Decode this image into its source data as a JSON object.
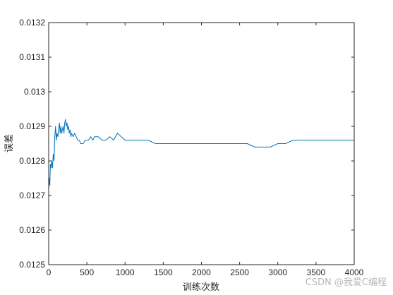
{
  "chart_data": {
    "type": "line",
    "title": "",
    "xlabel": "训练次数",
    "ylabel": "误差",
    "xlim": [
      0,
      4000
    ],
    "ylim": [
      0.0125,
      0.0132
    ],
    "xticks": [
      0,
      500,
      1000,
      1500,
      2000,
      2500,
      3000,
      3500,
      4000
    ],
    "xtick_labels": [
      "0",
      "500",
      "1000",
      "1500",
      "2000",
      "2500",
      "3000",
      "3500",
      "4000"
    ],
    "yticks": [
      0.0125,
      0.0126,
      0.0127,
      0.0128,
      0.0129,
      0.013,
      0.0131,
      0.0132
    ],
    "ytick_labels": [
      "0.0125",
      "0.0126",
      "0.0127",
      "0.0128",
      "0.0129",
      "0.013",
      "0.0131",
      "0.0132"
    ],
    "grid": false,
    "line_color": "#0072BD",
    "series": [
      {
        "x": [
          1,
          8,
          15,
          22,
          30,
          40,
          50,
          60,
          70,
          80,
          90,
          100,
          110,
          120,
          130,
          140,
          150,
          160,
          170,
          180,
          190,
          200,
          210,
          220,
          230,
          240,
          250,
          260,
          270,
          280,
          290,
          300,
          320,
          340,
          360,
          380,
          400,
          420,
          450,
          480,
          500,
          520,
          550,
          580,
          600,
          650,
          700,
          750,
          800,
          850,
          900,
          950,
          1000,
          1050,
          1100,
          1150,
          1200,
          1300,
          1400,
          1500,
          1600,
          1700,
          1800,
          1900,
          2000,
          2100,
          2200,
          2300,
          2400,
          2500,
          2600,
          2700,
          2800,
          2850,
          2900,
          3000,
          3050,
          3100,
          3200,
          3300,
          3400,
          3500,
          3600,
          3700,
          3800,
          3900,
          4000
        ],
        "y": [
          0.01272,
          0.01275,
          0.01273,
          0.01279,
          0.01278,
          0.0128,
          0.01278,
          0.01282,
          0.0128,
          0.01287,
          0.0129,
          0.01286,
          0.01288,
          0.01287,
          0.01289,
          0.01291,
          0.01288,
          0.0129,
          0.01288,
          0.01289,
          0.0129,
          0.01288,
          0.01291,
          0.01292,
          0.0129,
          0.01291,
          0.01289,
          0.0129,
          0.01288,
          0.01289,
          0.01287,
          0.01288,
          0.01287,
          0.01288,
          0.01287,
          0.01286,
          0.01286,
          0.01285,
          0.01285,
          0.01286,
          0.01286,
          0.01286,
          0.01287,
          0.01286,
          0.01287,
          0.01287,
          0.01286,
          0.01286,
          0.01287,
          0.01286,
          0.01288,
          0.01287,
          0.01286,
          0.01286,
          0.01286,
          0.01286,
          0.01286,
          0.01286,
          0.01285,
          0.01285,
          0.01285,
          0.01285,
          0.01285,
          0.01285,
          0.01285,
          0.01285,
          0.01285,
          0.01285,
          0.01285,
          0.01285,
          0.01285,
          0.01284,
          0.01284,
          0.01284,
          0.01284,
          0.01285,
          0.01285,
          0.01285,
          0.01286,
          0.01286,
          0.01286,
          0.01286,
          0.01286,
          0.01286,
          0.01286,
          0.01286,
          0.01286
        ]
      }
    ]
  },
  "watermark": "CSDN @我爱C编程"
}
